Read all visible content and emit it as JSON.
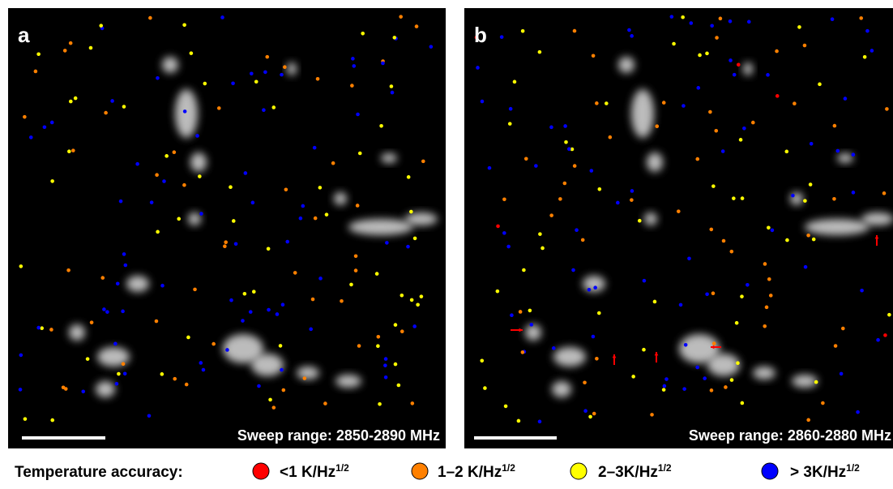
{
  "panels": [
    {
      "label": "a",
      "sweep": "Sweep range: 2850-2890 MHz"
    },
    {
      "label": "b",
      "sweep": "Sweep range: 2860-2880 MHz"
    }
  ],
  "legend": {
    "title": "Temperature accuracy:",
    "items": [
      {
        "text": "<1 K/Hz",
        "sup": "1/2",
        "color": "#ff0000"
      },
      {
        "text": "1–2 K/Hz",
        "sup": "1/2",
        "color": "#ff8000"
      },
      {
        "text": "2–3K/Hz",
        "sup": "1/2",
        "color": "#ffff00"
      },
      {
        "text": "> 3K/Hz",
        "sup": "1/2",
        "color": "#0000ff"
      }
    ]
  }
}
